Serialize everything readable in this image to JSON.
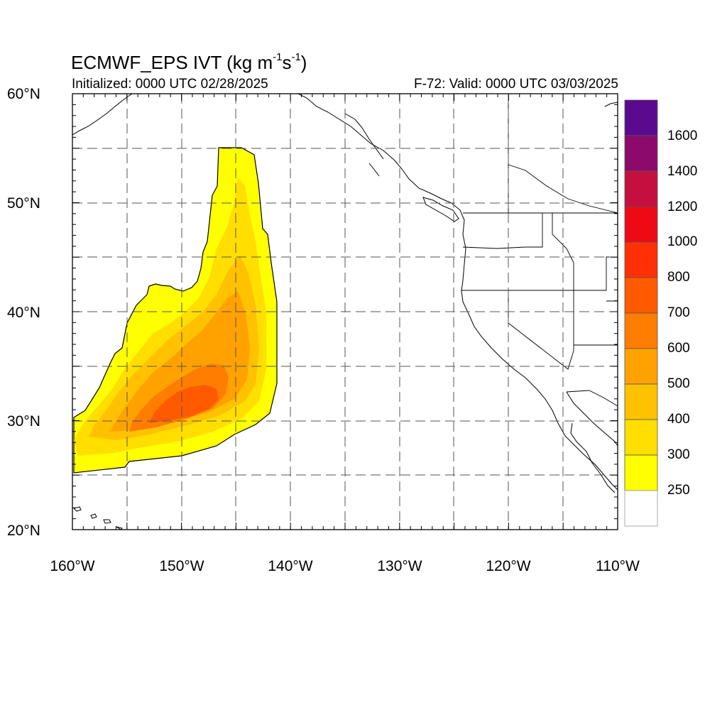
{
  "map": {
    "title_main": "ECMWF_EPS IVT (kg m",
    "title_sup1": "-1",
    "title_mid": "s",
    "title_sup2": "-1",
    "title_end": ")",
    "subtitle_left": "Initialized: 0000 UTC 02/28/2025",
    "subtitle_right": "F-72: Valid: 0000 UTC 03/03/2025",
    "extent": {
      "lon_min": -160,
      "lon_max": -110,
      "lat_min": 20,
      "lat_max": 60
    },
    "lat_labels": [
      "60°N",
      "50°N",
      "40°N",
      "30°N",
      "20°N"
    ],
    "lon_labels": [
      "160°W",
      "150°W",
      "140°W",
      "130°W",
      "120°W",
      "110°W"
    ],
    "gridlines": "dashed, every 5 degrees",
    "colorbar": {
      "labels": [
        "1600",
        "1400",
        "1200",
        "1000",
        "800",
        "700",
        "600",
        "500",
        "400",
        "300",
        "250"
      ],
      "colors": [
        "#5b0a8f",
        "#8b0a6c",
        "#c4103f",
        "#ee0a14",
        "#ff3005",
        "#ff5a00",
        "#ff7d00",
        "#ffa200",
        "#ffc100",
        "#ffde00",
        "#ffff00",
        "#ffffff"
      ]
    },
    "feature": {
      "description_shown": "IVT plume",
      "max_level": "700"
    }
  }
}
